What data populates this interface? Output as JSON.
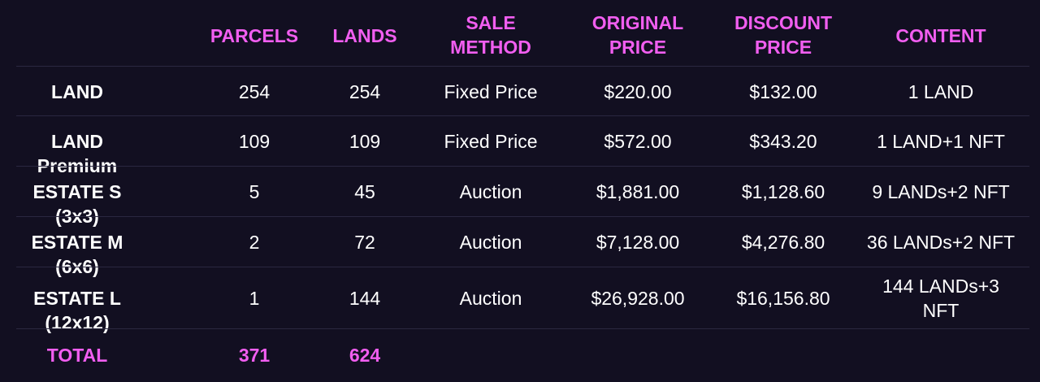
{
  "header": {
    "parcels": "PARCELS",
    "lands": "LANDS",
    "sale_method": "SALE\nMETHOD",
    "original_price": "ORIGINAL\nPRICE",
    "discount_price": "DISCOUNT\nPRICE",
    "content": "CONTENT"
  },
  "rows": [
    {
      "name": "LAND",
      "parcels": "254",
      "lands": "254",
      "method": "Fixed Price",
      "original": "$220.00",
      "discount": "$132.00",
      "content": "1 LAND"
    },
    {
      "name": "LAND Premium",
      "parcels": "109",
      "lands": "109",
      "method": "Fixed Price",
      "original": "$572.00",
      "discount": "$343.20",
      "content": "1 LAND+1 NFT"
    },
    {
      "name": "ESTATE S (3x3)",
      "parcels": "5",
      "lands": "45",
      "method": "Auction",
      "original": "$1,881.00",
      "discount": "$1,128.60",
      "content": "9 LANDs+2 NFT"
    },
    {
      "name": "ESTATE M (6x6)",
      "parcels": "2",
      "lands": "72",
      "method": "Auction",
      "original": "$7,128.00",
      "discount": "$4,276.80",
      "content": "36 LANDs+2 NFT"
    },
    {
      "name": "ESTATE L (12x12)",
      "parcels": "1",
      "lands": "144",
      "method": "Auction",
      "original": "$26,928.00",
      "discount": "$16,156.80",
      "content": "144 LANDs+3\nNFT"
    }
  ],
  "total": {
    "label": "TOTAL",
    "parcels": "371",
    "lands": "624"
  },
  "colors": {
    "background": "#120f21",
    "accent": "#f15ef0",
    "text": "#ffffff",
    "divider": "#2a2740"
  }
}
